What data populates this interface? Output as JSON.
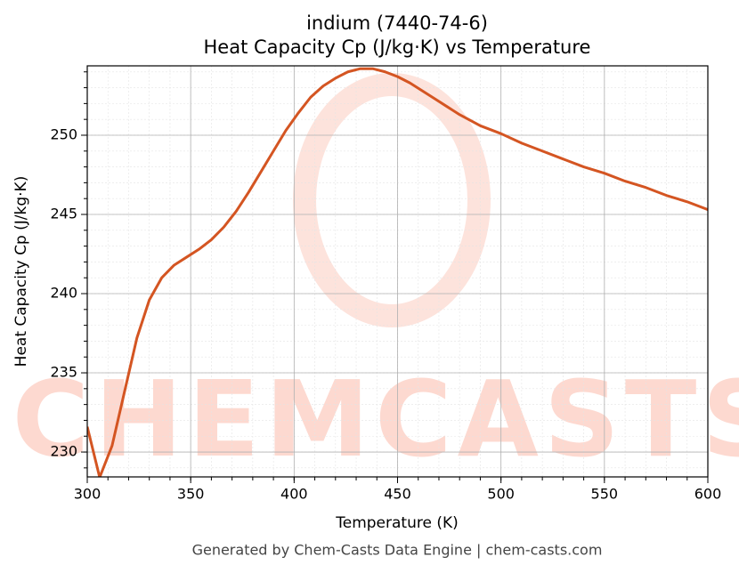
{
  "chart_data": {
    "type": "line",
    "title": "indium (7440-74-6)",
    "subtitle": "Heat Capacity Cp (J/kg·K) vs Temperature",
    "x_label": "Temperature (K)",
    "y_label": "Heat Capacity Cp (J/kg·K)",
    "footer": "Generated by Chem-Casts Data Engine | chem-casts.com",
    "watermark": "CHEMCASTS",
    "xlim": [
      300,
      600
    ],
    "xticks": [
      300,
      350,
      400,
      450,
      500,
      550,
      600
    ],
    "ylim": [
      228.43,
      254.38
    ],
    "yticks": [
      230,
      235,
      240,
      245,
      250
    ],
    "grid": true,
    "minor_grid": true,
    "series": [
      {
        "color": "#d45522",
        "x": [
          300,
          306,
          312,
          318,
          324,
          330,
          336,
          342,
          348,
          354,
          360,
          366,
          372,
          378,
          384,
          390,
          396,
          402,
          408,
          414,
          420,
          426,
          432,
          438,
          444,
          450,
          456,
          462,
          468,
          474,
          480,
          490,
          500,
          510,
          520,
          530,
          540,
          550,
          560,
          570,
          580,
          590,
          600
        ],
        "values": [
          231.6,
          228.4,
          230.4,
          233.8,
          237.2,
          239.6,
          241.0,
          241.8,
          242.3,
          242.8,
          243.4,
          244.2,
          245.2,
          246.4,
          247.7,
          249.0,
          250.3,
          251.4,
          252.4,
          253.1,
          253.6,
          254.0,
          254.2,
          254.2,
          254.0,
          253.7,
          253.3,
          252.8,
          252.3,
          251.8,
          251.3,
          250.6,
          250.1,
          249.5,
          249.0,
          248.5,
          248.0,
          247.6,
          247.1,
          246.7,
          246.2,
          245.8,
          245.3
        ]
      }
    ]
  }
}
